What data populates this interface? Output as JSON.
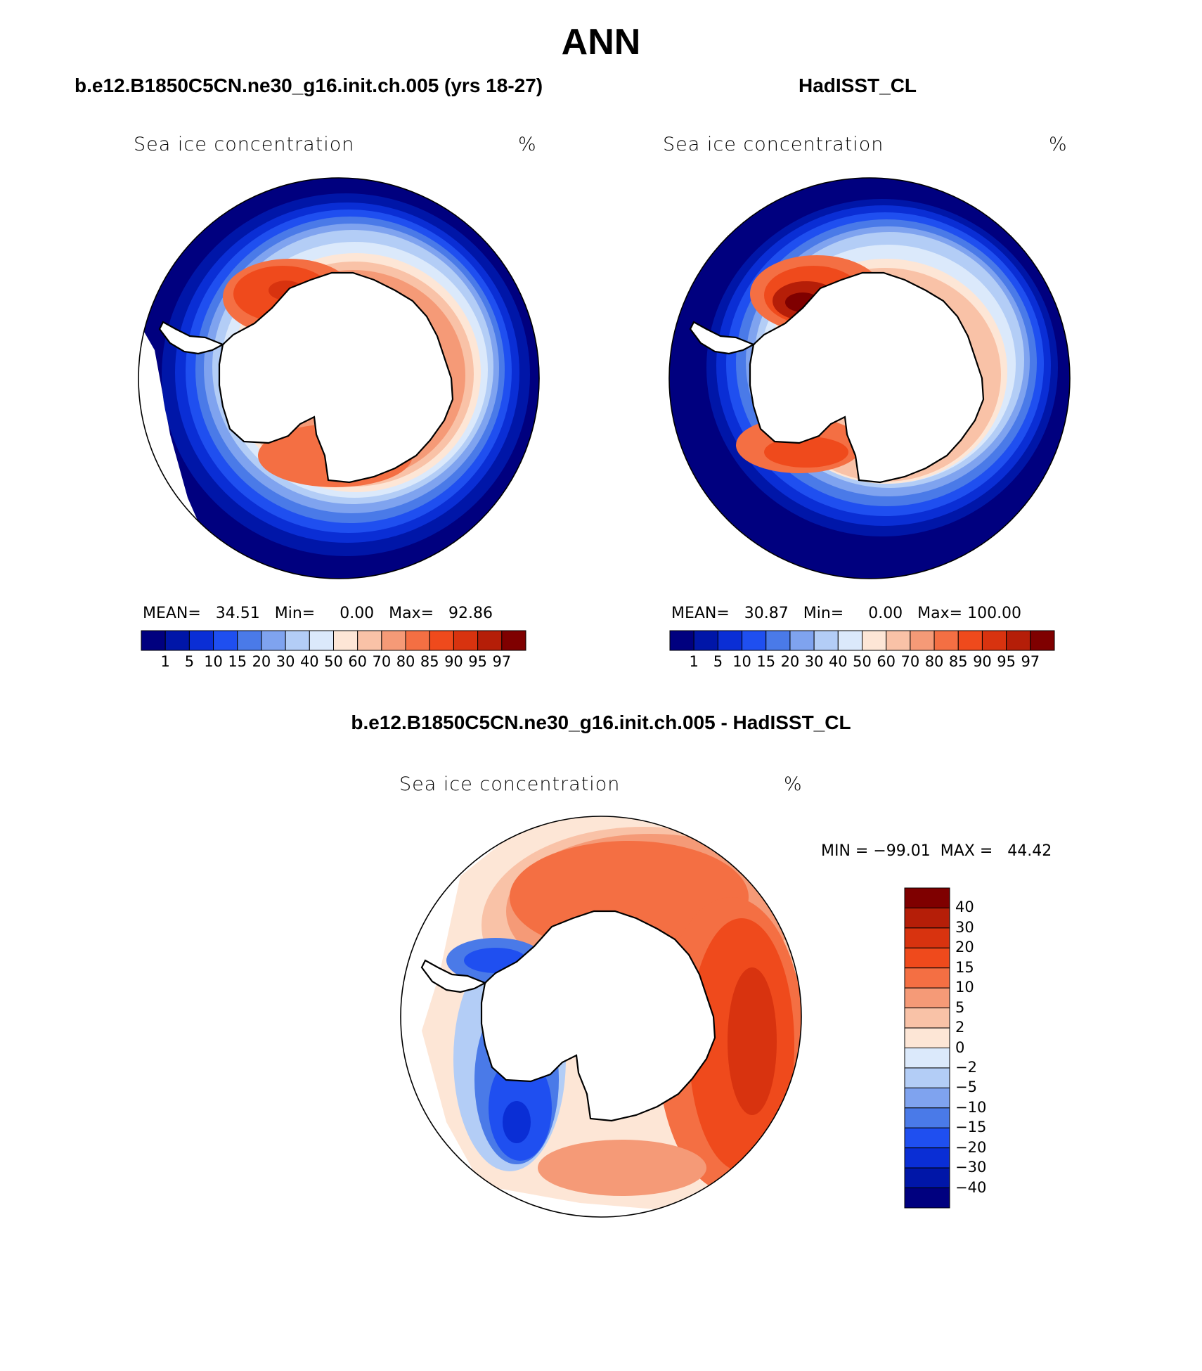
{
  "page": {
    "title": "ANN"
  },
  "panels": [
    {
      "id": "model",
      "case_title": "b.e12.B1850C5CN.ne30_g16.init.ch.005 (yrs 18-27)",
      "variable": "Sea ice concentration",
      "units": "%",
      "stats_line": "MEAN=   34.51   Min=     0.00   Max=   92.86"
    },
    {
      "id": "obs",
      "case_title": "HadISST_CL",
      "variable": "Sea ice concentration",
      "units": "%",
      "stats_line": "MEAN=   30.87   Min=     0.00   Max= 100.00"
    },
    {
      "id": "diff",
      "case_title": "b.e12.B1850C5CN.ne30_g16.init.ch.005 - HadISST_CL",
      "variable": "Sea ice concentration",
      "units": "%",
      "stats_line": "MIN = −99.01  MAX =   44.42"
    }
  ],
  "abs_colorbar": {
    "levels": [
      "1",
      "5",
      "10",
      "15",
      "20",
      "30",
      "40",
      "50",
      "60",
      "70",
      "80",
      "85",
      "90",
      "95",
      "97"
    ],
    "colors": [
      "#00007f",
      "#0016a8",
      "#0a2ed5",
      "#1f4ff0",
      "#4a7ae8",
      "#7fa3ef",
      "#b3cdf6",
      "#dbe9fb",
      "#fde6d6",
      "#f9c2a7",
      "#f59a77",
      "#f46f43",
      "#ef4a1c",
      "#d8330f",
      "#b51e08",
      "#7f0000"
    ]
  },
  "diff_colorbar": {
    "levels": [
      "40",
      "30",
      "20",
      "15",
      "10",
      "5",
      "2",
      "0",
      "−2",
      "−5",
      "−10",
      "−15",
      "−20",
      "−30",
      "−40"
    ],
    "colors": [
      "#7f0000",
      "#b51e08",
      "#d8330f",
      "#ef4a1c",
      "#f46f43",
      "#f59a77",
      "#f9c2a7",
      "#fde6d6",
      "#dbe9fb",
      "#b3cdf6",
      "#7fa3ef",
      "#4a7ae8",
      "#1f4ff0",
      "#0a2ed5",
      "#0016a8",
      "#00007f"
    ]
  }
}
